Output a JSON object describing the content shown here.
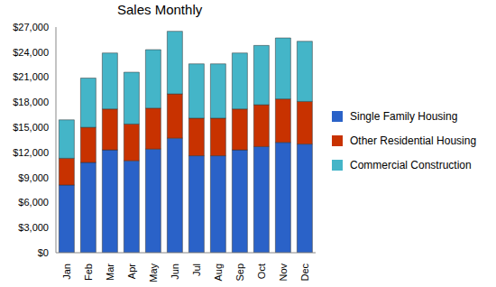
{
  "chart_data": {
    "type": "bar",
    "title": "Sales Monthly",
    "stacked": true,
    "grid": false,
    "legend": "right",
    "categories": [
      "Jan",
      "Feb",
      "Mar",
      "Apr",
      "May",
      "Jun",
      "Jul",
      "Aug",
      "Sep",
      "Oct",
      "Nov",
      "Dec"
    ],
    "series": [
      {
        "name": "Single Family Housing",
        "color": "#2a62c8",
        "values": [
          8100,
          10800,
          12300,
          11000,
          12400,
          13700,
          11600,
          11600,
          12300,
          12700,
          13200,
          13000
        ]
      },
      {
        "name": "Other Residential Housing",
        "color": "#c83200",
        "values": [
          3200,
          4200,
          4900,
          4400,
          4900,
          5300,
          4500,
          4500,
          4900,
          5000,
          5200,
          5100
        ]
      },
      {
        "name": "Commercial Construction",
        "color": "#44b5c8",
        "values": [
          4600,
          5900,
          6700,
          6200,
          7000,
          7500,
          6500,
          6500,
          6700,
          7100,
          7300,
          7200
        ]
      }
    ],
    "ylim": [
      0,
      27000
    ],
    "yticks": [
      {
        "value": 0,
        "label": "$0"
      },
      {
        "value": 3000,
        "label": "$3,000"
      },
      {
        "value": 6000,
        "label": "$6,000"
      },
      {
        "value": 9000,
        "label": "$9,000"
      },
      {
        "value": 12000,
        "label": "$12,000"
      },
      {
        "value": 15000,
        "label": "$15,000"
      },
      {
        "value": 18000,
        "label": "$18,000"
      },
      {
        "value": 21000,
        "label": "$21,000"
      },
      {
        "value": 24000,
        "label": "$24,000"
      },
      {
        "value": 27000,
        "label": "$27,000"
      }
    ]
  }
}
